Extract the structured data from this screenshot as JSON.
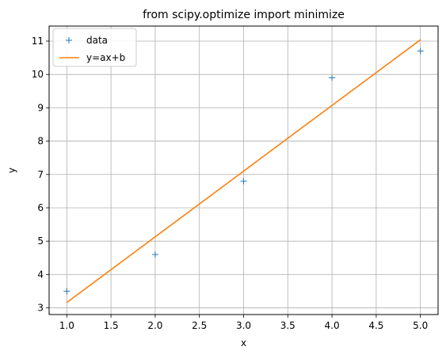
{
  "chart_data": {
    "type": "line",
    "title": "from scipy.optimize import minimize",
    "xlabel": "x",
    "ylabel": "y",
    "xlim": [
      0.8,
      5.2
    ],
    "ylim": [
      2.8,
      11.45
    ],
    "xticks": [
      "1.0",
      "1.5",
      "2.0",
      "2.5",
      "3.0",
      "3.5",
      "4.0",
      "4.5",
      "5.0"
    ],
    "yticks": [
      "3",
      "4",
      "5",
      "6",
      "7",
      "8",
      "9",
      "10",
      "11"
    ],
    "grid": true,
    "legend": "upper-left",
    "series": [
      {
        "name": "data",
        "kind": "scatter",
        "marker": "plus",
        "color": "#1f77b4",
        "x": [
          1,
          2,
          3,
          4,
          5
        ],
        "y": [
          3.5,
          4.6,
          6.8,
          9.9,
          10.7
        ]
      },
      {
        "name": "y=ax+b",
        "kind": "line",
        "color": "#ff7f0e",
        "x": [
          1,
          5
        ],
        "y": [
          3.16,
          11.04
        ]
      }
    ]
  }
}
